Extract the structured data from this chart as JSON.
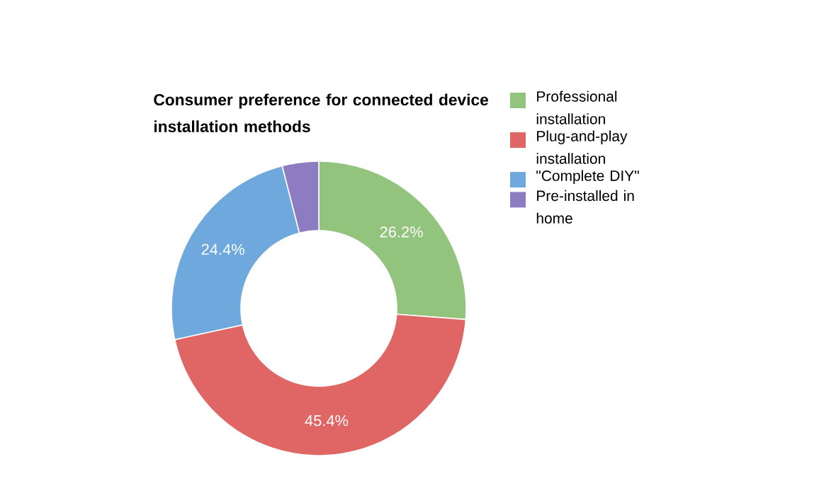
{
  "chart_data": {
    "type": "donut",
    "title": "Consumer preference for connected device installation methods",
    "categories": [
      "Professional installation",
      "Plug-and-play installation",
      "\"Complete DIY\"",
      "Pre-installed in home"
    ],
    "values": [
      26.2,
      45.4,
      24.4,
      4.0
    ],
    "colors": [
      "#93c47d",
      "#e06666",
      "#6fa8dc",
      "#8e7cc3"
    ],
    "value_labels": [
      "26.2%",
      "45.4%",
      "24.4%",
      null
    ],
    "legend": "right"
  }
}
